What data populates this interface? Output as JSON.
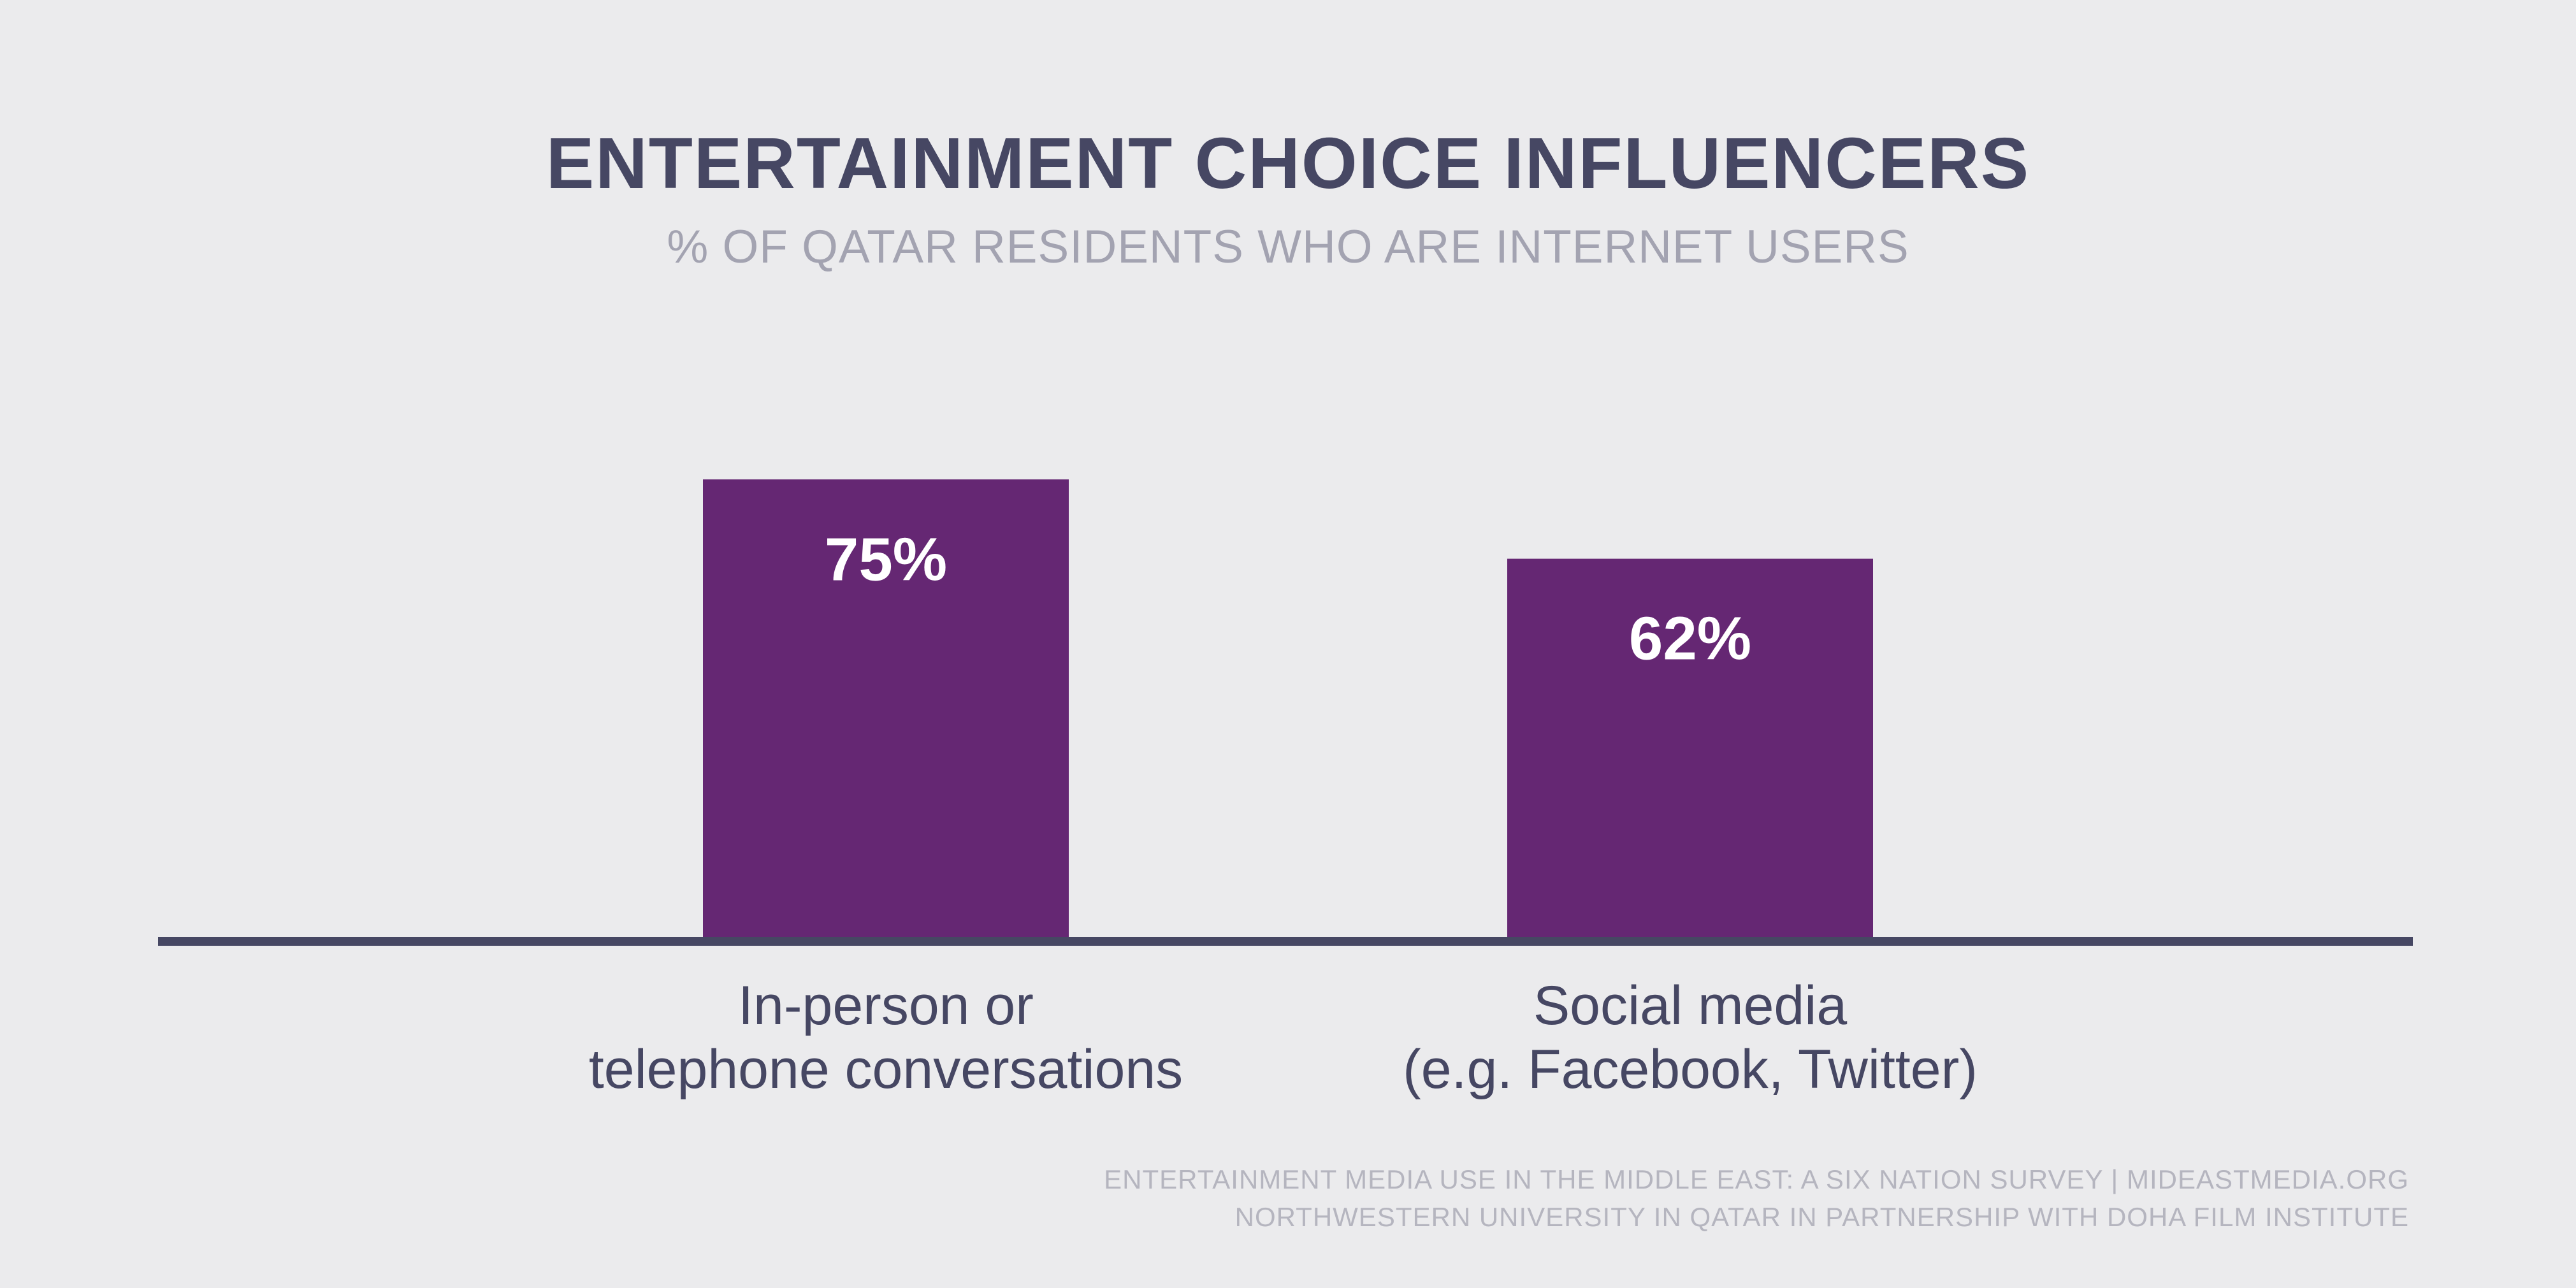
{
  "colors": {
    "background": "#ebebed",
    "bar": "#652773",
    "title": "#464763",
    "subtitle": "#a3a3b1",
    "axis": "#464763",
    "source": "#b5b5bf"
  },
  "chart_data": {
    "type": "bar",
    "title": "ENTERTAINMENT CHOICE INFLUENCERS",
    "subtitle": "% OF QATAR RESIDENTS WHO ARE INTERNET USERS",
    "categories": [
      [
        "In-person or",
        "telephone conversations"
      ],
      [
        "Social media",
        "(e.g. Facebook, Twitter)"
      ]
    ],
    "values": [
      75,
      62
    ],
    "value_labels": [
      "75%",
      "62%"
    ],
    "ylim": [
      0,
      100
    ],
    "grid": false,
    "xlabel": "",
    "ylabel": ""
  },
  "source": {
    "line1": "ENTERTAINMENT MEDIA USE IN THE MIDDLE EAST: A SIX NATION SURVEY | MIDEASTMEDIA.ORG",
    "line2": "NORTHWESTERN UNIVERSITY IN QATAR IN PARTNERSHIP WITH DOHA FILM INSTITUTE"
  }
}
